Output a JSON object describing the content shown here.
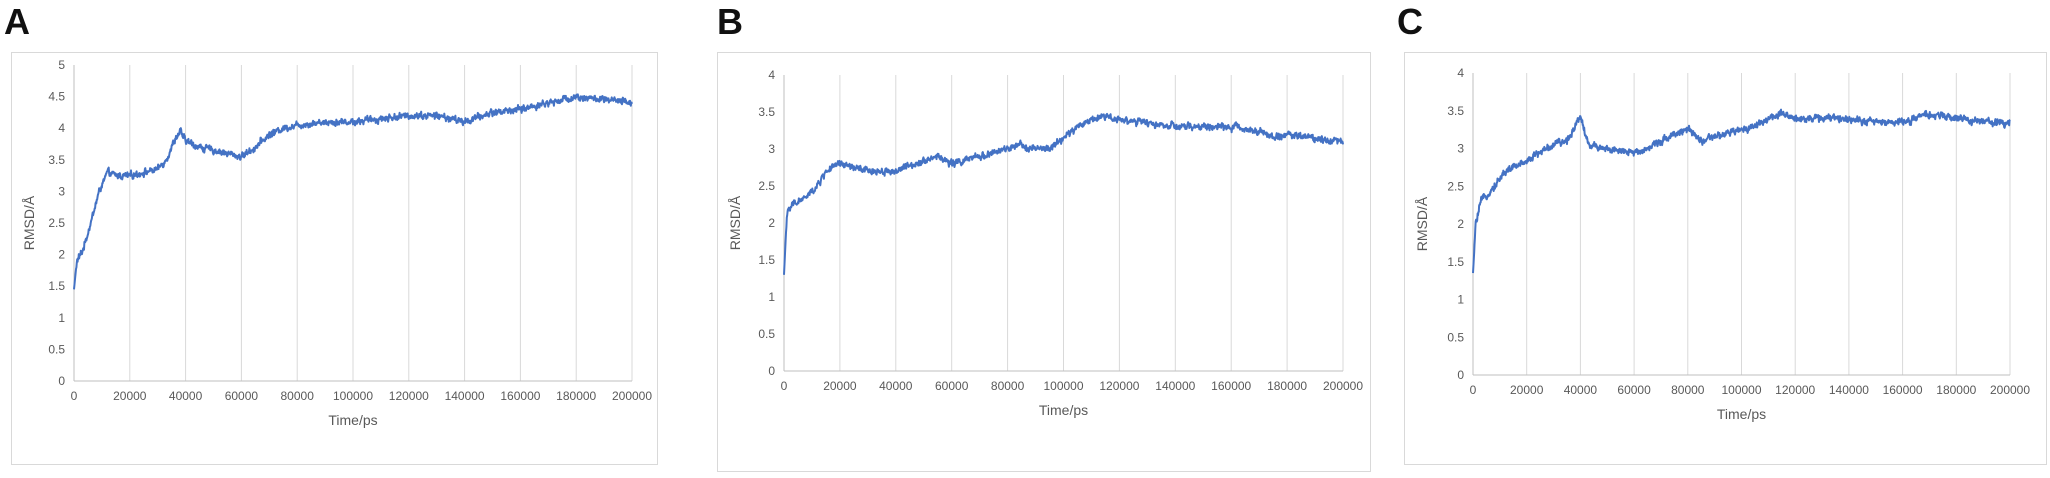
{
  "panels": [
    {
      "letter": "A"
    },
    {
      "letter": "B"
    },
    {
      "letter": "C"
    }
  ],
  "colors": {
    "line": "#4472C4",
    "grid": "#d9d9d9",
    "axis": "#bfbfbf",
    "text": "#595959"
  },
  "chart_data": [
    {
      "type": "line",
      "title": "",
      "xlabel": "Time/ps",
      "ylabel": "RMSD/Å",
      "xlim": [
        0,
        200000
      ],
      "ylim": [
        0,
        5
      ],
      "xticks": [
        0,
        20000,
        40000,
        60000,
        80000,
        100000,
        120000,
        140000,
        160000,
        180000,
        200000
      ],
      "yticks": [
        0,
        0.5,
        1,
        1.5,
        2,
        2.5,
        3,
        3.5,
        4,
        4.5,
        5
      ],
      "ytick_labels": [
        "0",
        "0.5",
        "1",
        "1.5",
        "2",
        "2.5",
        "3",
        "3.5",
        "4",
        "4.5",
        "5"
      ],
      "grid": "vertical",
      "series": [
        {
          "x": [
            0,
            1000,
            3000,
            6000,
            9000,
            12000,
            15000,
            20000,
            25000,
            30000,
            33000,
            36000,
            38000,
            40000,
            45000,
            50000,
            55000,
            60000,
            65000,
            70000,
            75000,
            80000,
            90000,
            100000,
            110000,
            120000,
            130000,
            140000,
            150000,
            160000,
            170000,
            180000,
            190000,
            200000
          ],
          "values": [
            1.45,
            1.9,
            2.05,
            2.5,
            3.0,
            3.3,
            3.25,
            3.25,
            3.3,
            3.35,
            3.5,
            3.8,
            3.95,
            3.8,
            3.7,
            3.65,
            3.6,
            3.55,
            3.7,
            3.9,
            4.0,
            4.05,
            4.1,
            4.1,
            4.15,
            4.2,
            4.2,
            4.1,
            4.25,
            4.3,
            4.4,
            4.5,
            4.45,
            4.4
          ],
          "noise": 0.07
        }
      ]
    },
    {
      "type": "line",
      "title": "",
      "xlabel": "Time/ps",
      "ylabel": "RMSD/Å",
      "xlim": [
        0,
        200000
      ],
      "ylim": [
        0,
        4
      ],
      "xticks": [
        0,
        20000,
        40000,
        60000,
        80000,
        100000,
        120000,
        140000,
        160000,
        180000,
        200000
      ],
      "yticks": [
        0,
        0.5,
        1,
        1.5,
        2,
        2.5,
        3,
        3.5,
        4
      ],
      "ytick_labels": [
        "0",
        "0.5",
        "1",
        "1.5",
        "2",
        "2.5",
        "3",
        "3.5",
        "4"
      ],
      "grid": "vertical",
      "series": [
        {
          "x": [
            0,
            1000,
            3000,
            8000,
            12000,
            15000,
            20000,
            25000,
            30000,
            40000,
            50000,
            55000,
            60000,
            65000,
            70000,
            75000,
            80000,
            85000,
            90000,
            95000,
            100000,
            105000,
            110000,
            115000,
            120000,
            130000,
            140000,
            150000,
            160000,
            170000,
            175000,
            180000,
            190000,
            200000
          ],
          "values": [
            1.3,
            2.1,
            2.25,
            2.35,
            2.5,
            2.7,
            2.8,
            2.75,
            2.7,
            2.7,
            2.85,
            2.9,
            2.8,
            2.85,
            2.9,
            2.95,
            3.0,
            3.05,
            3.0,
            3.0,
            3.15,
            3.3,
            3.4,
            3.45,
            3.4,
            3.35,
            3.3,
            3.3,
            3.3,
            3.25,
            3.15,
            3.2,
            3.15,
            3.1
          ],
          "noise": 0.06
        }
      ]
    },
    {
      "type": "line",
      "title": "",
      "xlabel": "Time/ps",
      "ylabel": "RMSD/Å",
      "xlim": [
        0,
        200000
      ],
      "ylim": [
        0,
        4
      ],
      "xticks": [
        0,
        20000,
        40000,
        60000,
        80000,
        100000,
        120000,
        140000,
        160000,
        180000,
        200000
      ],
      "yticks": [
        0,
        0.5,
        1,
        1.5,
        2,
        2.5,
        3,
        3.5,
        4
      ],
      "ytick_labels": [
        "0",
        "0.5",
        "1",
        "1.5",
        "2",
        "2.5",
        "3",
        "3.5",
        "4"
      ],
      "grid": "vertical",
      "series": [
        {
          "x": [
            0,
            1000,
            3000,
            8000,
            12000,
            18000,
            25000,
            30000,
            35000,
            38000,
            40000,
            41000,
            43000,
            50000,
            55000,
            60000,
            65000,
            70000,
            75000,
            80000,
            85000,
            90000,
            95000,
            100000,
            105000,
            110000,
            115000,
            120000,
            130000,
            140000,
            150000,
            160000,
            170000,
            180000,
            190000,
            200000
          ],
          "values": [
            1.35,
            2.0,
            2.3,
            2.5,
            2.7,
            2.8,
            2.95,
            3.05,
            3.1,
            3.3,
            3.45,
            3.3,
            3.05,
            3.0,
            2.95,
            2.95,
            3.0,
            3.1,
            3.2,
            3.25,
            3.1,
            3.15,
            3.2,
            3.25,
            3.3,
            3.4,
            3.45,
            3.4,
            3.4,
            3.4,
            3.35,
            3.35,
            3.45,
            3.4,
            3.35,
            3.35
          ],
          "noise": 0.06
        }
      ]
    }
  ]
}
